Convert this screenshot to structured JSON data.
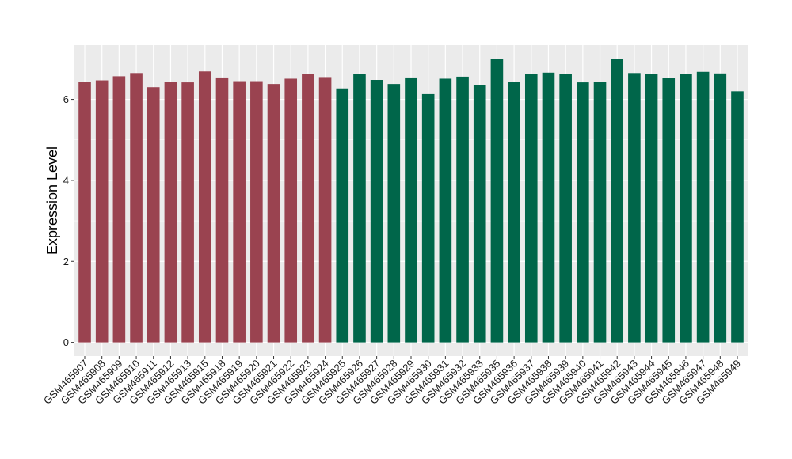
{
  "chart_data": {
    "type": "bar",
    "title": "",
    "xlabel": "",
    "ylabel": "Expression Level",
    "ylim": [
      -0.34,
      7.34
    ],
    "yticks": [
      0,
      2,
      4,
      6
    ],
    "ytick_labels": [
      "0",
      "2",
      "4",
      "6"
    ],
    "grid": true,
    "legend": "none",
    "panel_background": "#ebebeb",
    "gridline_color": "#ffffff",
    "categories": [
      "GSM465907",
      "GSM465908",
      "GSM465909",
      "GSM465910",
      "GSM465911",
      "GSM465912",
      "GSM465913",
      "GSM465915",
      "GSM465918",
      "GSM465919",
      "GSM465920",
      "GSM465921",
      "GSM465922",
      "GSM465923",
      "GSM465924",
      "GSM465925",
      "GSM465926",
      "GSM465927",
      "GSM465928",
      "GSM465929",
      "GSM465930",
      "GSM465931",
      "GSM465932",
      "GSM465933",
      "GSM465935",
      "GSM465936",
      "GSM465937",
      "GSM465938",
      "GSM465939",
      "GSM465940",
      "GSM465941",
      "GSM465942",
      "GSM465943",
      "GSM465944",
      "GSM465945",
      "GSM465946",
      "GSM465947",
      "GSM465948",
      "GSM465949"
    ],
    "values": [
      6.43,
      6.47,
      6.57,
      6.65,
      6.3,
      6.44,
      6.42,
      6.69,
      6.54,
      6.45,
      6.45,
      6.38,
      6.51,
      6.62,
      6.55,
      6.27,
      6.63,
      6.48,
      6.38,
      6.54,
      6.13,
      6.51,
      6.56,
      6.36,
      7.0,
      6.44,
      6.63,
      6.66,
      6.63,
      6.42,
      6.44,
      7.0,
      6.65,
      6.63,
      6.52,
      6.62,
      6.68,
      6.64,
      6.2
    ],
    "bar_colors": [
      "#9a4350",
      "#9a4350",
      "#9a4350",
      "#9a4350",
      "#9a4350",
      "#9a4350",
      "#9a4350",
      "#9a4350",
      "#9a4350",
      "#9a4350",
      "#9a4350",
      "#9a4350",
      "#9a4350",
      "#9a4350",
      "#9a4350",
      "#00664a",
      "#00664a",
      "#00664a",
      "#00664a",
      "#00664a",
      "#00664a",
      "#00664a",
      "#00664a",
      "#00664a",
      "#00664a",
      "#00664a",
      "#00664a",
      "#00664a",
      "#00664a",
      "#00664a",
      "#00664a",
      "#00664a",
      "#00664a",
      "#00664a",
      "#00664a",
      "#00664a",
      "#00664a",
      "#00664a",
      "#00664a"
    ]
  }
}
